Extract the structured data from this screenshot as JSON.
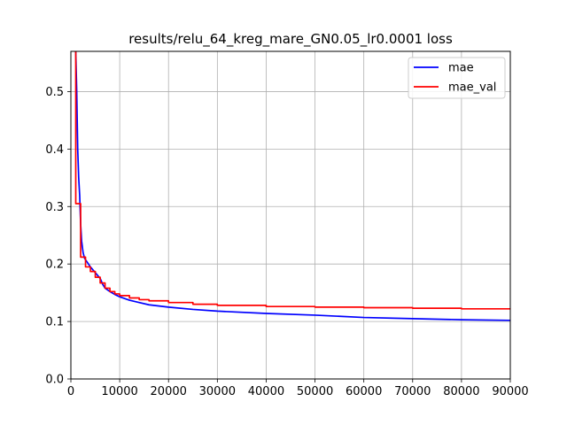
{
  "chart_data": {
    "type": "line",
    "title": "results/relu_64_kreg_mare_GN0.05_lr0.0001 loss",
    "xlabel": "",
    "ylabel": "",
    "xlim": [
      0,
      90000
    ],
    "ylim": [
      0,
      0.57
    ],
    "xticks": [
      0,
      10000,
      20000,
      30000,
      40000,
      50000,
      60000,
      70000,
      80000,
      90000
    ],
    "xtick_labels": [
      "0",
      "10000",
      "20000",
      "30000",
      "40000",
      "50000",
      "60000",
      "70000",
      "80000",
      "90000"
    ],
    "yticks": [
      0.0,
      0.1,
      0.2,
      0.3,
      0.4,
      0.5
    ],
    "ytick_labels": [
      "0.0",
      "0.1",
      "0.2",
      "0.3",
      "0.4",
      "0.5"
    ],
    "grid": true,
    "legend_position": "top-right",
    "series": [
      {
        "name": "mae",
        "color": "#0000ff",
        "x": [
          1000,
          1200,
          1400,
          1600,
          1800,
          2000,
          2200,
          2500,
          2800,
          3200,
          3600,
          4000,
          4500,
          5000,
          5500,
          6000,
          6500,
          7000,
          8000,
          9000,
          10000,
          12000,
          14000,
          16000,
          20000,
          25000,
          30000,
          40000,
          50000,
          60000,
          70000,
          80000,
          90000
        ],
        "y": [
          0.57,
          0.5,
          0.4,
          0.35,
          0.32,
          0.27,
          0.24,
          0.22,
          0.21,
          0.205,
          0.2,
          0.195,
          0.19,
          0.185,
          0.18,
          0.175,
          0.165,
          0.158,
          0.152,
          0.147,
          0.143,
          0.137,
          0.133,
          0.129,
          0.125,
          0.121,
          0.118,
          0.114,
          0.111,
          0.107,
          0.105,
          0.103,
          0.102
        ]
      },
      {
        "name": "mae_val",
        "color": "#ff0000",
        "step": true,
        "x": [
          800,
          1000,
          2000,
          3000,
          4000,
          5000,
          6000,
          7000,
          8000,
          9000,
          10000,
          12000,
          14000,
          16000,
          20000,
          25000,
          30000,
          40000,
          50000,
          60000,
          70000,
          80000,
          90000
        ],
        "y": [
          0.57,
          0.305,
          0.212,
          0.195,
          0.187,
          0.177,
          0.167,
          0.158,
          0.152,
          0.148,
          0.145,
          0.141,
          0.138,
          0.136,
          0.133,
          0.13,
          0.128,
          0.126,
          0.125,
          0.124,
          0.123,
          0.122,
          0.122
        ]
      }
    ]
  }
}
